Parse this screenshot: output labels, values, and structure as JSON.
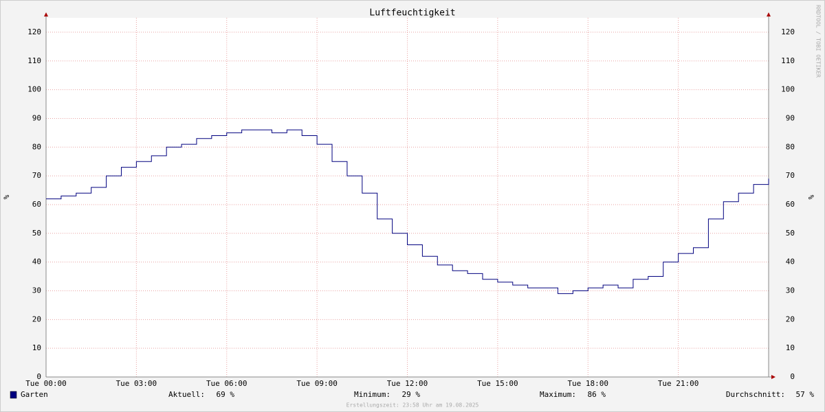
{
  "chart_data": {
    "type": "line",
    "title": "Luftfeuchtigkeit",
    "y_label": "%",
    "watermark": "RRDTOOL / TOBI OETIKER",
    "footer": "Erstellungszeit: 23:58 Uhr am 19.08.2025",
    "step": true,
    "grid": true,
    "xlim": [
      0,
      24
    ],
    "xticks": [
      {
        "value": 0,
        "label": "Tue 00:00"
      },
      {
        "value": 3,
        "label": "Tue 03:00"
      },
      {
        "value": 6,
        "label": "Tue 06:00"
      },
      {
        "value": 9,
        "label": "Tue 09:00"
      },
      {
        "value": 12,
        "label": "Tue 12:00"
      },
      {
        "value": 15,
        "label": "Tue 15:00"
      },
      {
        "value": 18,
        "label": "Tue 18:00"
      },
      {
        "value": 21,
        "label": "Tue 21:00"
      }
    ],
    "ylim": [
      0,
      125
    ],
    "yticks": [
      0,
      10,
      20,
      30,
      40,
      50,
      60,
      70,
      80,
      90,
      100,
      110,
      120
    ],
    "x": [
      0,
      0.5,
      1,
      1.5,
      2,
      2.5,
      3,
      3.5,
      4,
      4.5,
      5,
      5.5,
      6,
      6.5,
      7,
      7.5,
      8,
      8.5,
      9,
      9.5,
      10,
      10.5,
      11,
      11.5,
      12,
      12.5,
      13,
      13.5,
      14,
      14.5,
      15,
      15.5,
      16,
      16.5,
      17,
      17.5,
      18,
      18.5,
      19,
      19.5,
      20,
      20.5,
      21,
      21.5,
      22,
      22.5,
      23,
      23.5,
      24
    ],
    "series": [
      {
        "name": "Garten",
        "color": "#00007f",
        "values": [
          62,
          63,
          64,
          66,
          70,
          73,
          75,
          77,
          80,
          81,
          83,
          84,
          85,
          86,
          86,
          85,
          86,
          84,
          81,
          75,
          70,
          64,
          55,
          50,
          46,
          42,
          39,
          37,
          36,
          34,
          33,
          32,
          31,
          31,
          29,
          30,
          31,
          32,
          31,
          34,
          35,
          40,
          43,
          45,
          55,
          61,
          64,
          67,
          69
        ]
      }
    ],
    "stats": [
      {
        "label": "Aktuell:",
        "value": "69 %"
      },
      {
        "label": "Minimum:",
        "value": "29 %"
      },
      {
        "label": "Maximum:",
        "value": "86 %"
      },
      {
        "label": "Durchschnitt:",
        "value": "57 %"
      }
    ]
  }
}
